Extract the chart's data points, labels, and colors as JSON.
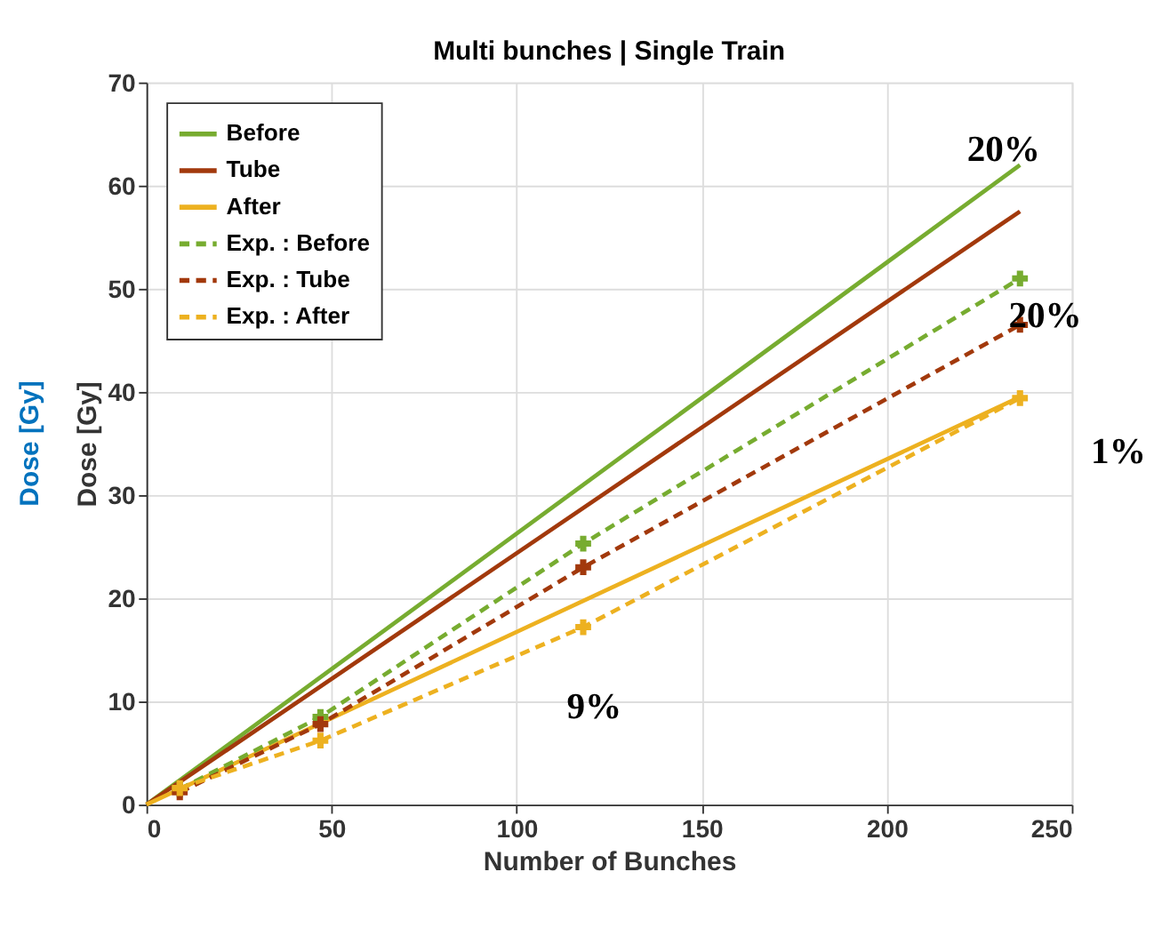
{
  "chart_data": {
    "type": "line",
    "title": "Multi bunches | Single Train",
    "xlabel": "Number of Bunches",
    "ylabel": "Dose [Gy]",
    "xlim": [
      0,
      250
    ],
    "xticks": [
      0,
      50,
      100,
      150,
      200,
      250
    ],
    "ylim": [
      0,
      70
    ],
    "yticks": [
      0,
      10,
      20,
      30,
      40,
      50,
      60,
      70
    ],
    "grid": true,
    "legend": "top left",
    "series": [
      {
        "name": "Before",
        "color": "#77ac30",
        "x": [
          0,
          236
        ],
        "values": [
          0,
          62
        ],
        "line_style": "solid",
        "marker": "none"
      },
      {
        "name": "Tube",
        "color": "#a2390c",
        "x": [
          0,
          236
        ],
        "values": [
          0,
          57.5
        ],
        "line_style": "solid",
        "marker": "none"
      },
      {
        "name": "After",
        "color": "#edb120",
        "x": [
          0,
          236
        ],
        "values": [
          0,
          39.5
        ],
        "line_style": "solid"
      },
      {
        "name": "Exp. : Before",
        "color": "#77ac30",
        "x": [
          9,
          47,
          118,
          236
        ],
        "values": [
          1.5,
          8.5,
          25.3,
          51
        ],
        "line_style": "dashed",
        "marker": "cross"
      },
      {
        "name": "Exp. : Tube",
        "color": "#a2390c",
        "x": [
          9,
          47,
          118,
          236
        ],
        "values": [
          1.2,
          7.8,
          23,
          46.5
        ],
        "line_style": "dashed",
        "marker": "cross"
      },
      {
        "name": "Exp. : After",
        "color": "#edb120",
        "x": [
          9,
          47,
          118,
          236
        ],
        "values": [
          1.6,
          6.2,
          17.2,
          39.4
        ],
        "line_style": "dashed",
        "marker": "cross"
      }
    ],
    "annotations": [
      "20%",
      "20%",
      "1%",
      "9%",
      "Dose [Gy]"
    ]
  }
}
